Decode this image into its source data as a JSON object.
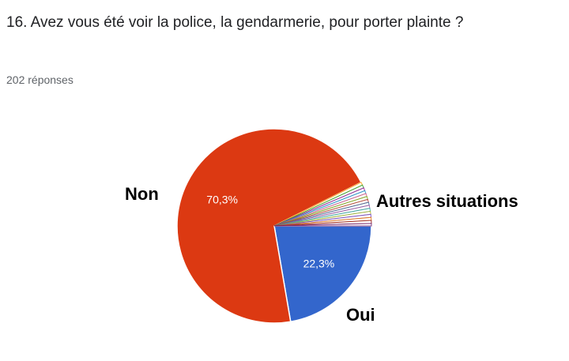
{
  "question": {
    "title": "16. Avez vous été voir la police, la gendarmerie, pour porter plainte ?",
    "responses": "202 réponses"
  },
  "chart_data": {
    "type": "pie",
    "start_angle": "3 o'clock, clockwise",
    "slices": [
      {
        "name": "Oui",
        "value": 22.3,
        "label": "22,3%",
        "color": "#3366cc"
      },
      {
        "name": "Non",
        "value": 70.3,
        "label": "70,3%",
        "color": "#dc3912"
      },
      {
        "value": 0.5,
        "color": "#ff9900"
      },
      {
        "value": 0.5,
        "color": "#109618"
      },
      {
        "value": 0.5,
        "color": "#990099"
      },
      {
        "value": 0.5,
        "color": "#0099c6"
      },
      {
        "value": 0.5,
        "color": "#dd4477"
      },
      {
        "value": 0.5,
        "color": "#66aa00"
      },
      {
        "value": 0.5,
        "color": "#b82e2e"
      },
      {
        "value": 0.5,
        "color": "#316395"
      },
      {
        "value": 0.5,
        "color": "#994499"
      },
      {
        "value": 0.5,
        "color": "#22aa99"
      },
      {
        "value": 0.5,
        "color": "#aaaa11"
      },
      {
        "value": 0.5,
        "color": "#6633cc"
      },
      {
        "value": 0.5,
        "color": "#e67300"
      },
      {
        "value": 0.5,
        "color": "#8b0707"
      },
      {
        "value": 0.4,
        "color": "#651067"
      }
    ],
    "annotations": {
      "non": "Non",
      "oui": "Oui",
      "autres": "Autres situations"
    }
  }
}
